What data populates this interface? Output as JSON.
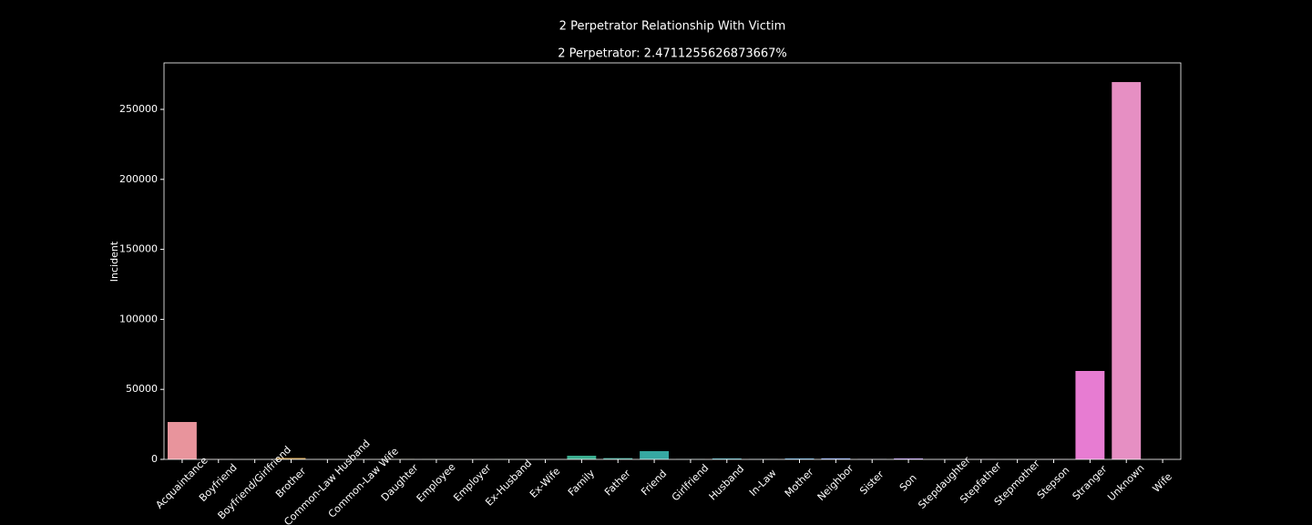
{
  "chart_data": {
    "type": "bar",
    "title": "2 Perpetrator Relationship With Victim",
    "subtitle": "2 Perpetrator: 2.4711255626873667%",
    "y_label": "Incident",
    "categories": [
      "Acquaintance",
      "Boyfriend",
      "Boyfriend/Girlfriend",
      "Brother",
      "Common-Law Husband",
      "Common-Law Wife",
      "Daughter",
      "Employee",
      "Employer",
      "Ex-Husband",
      "Ex-Wife",
      "Family",
      "Father",
      "Friend",
      "Girlfriend",
      "Husband",
      "In-Law",
      "Mother",
      "Neighbor",
      "Sister",
      "Son",
      "Stepdaughter",
      "Stepfather",
      "Stepmother",
      "Stepson",
      "Stranger",
      "Unknown",
      "Wife"
    ],
    "values": [
      26700,
      100,
      50,
      1000,
      50,
      50,
      200,
      100,
      50,
      100,
      50,
      2600,
      900,
      5900,
      150,
      700,
      200,
      700,
      800,
      200,
      700,
      50,
      100,
      50,
      100,
      63150,
      269500,
      100
    ],
    "colors": [
      "#e8949c",
      "#e8967c",
      "#de9c5c",
      "#d0a04d",
      "#c1a64a",
      "#b2ab48",
      "#a1af47",
      "#8eb346",
      "#74b846",
      "#4cbb5a",
      "#3fb77d",
      "#3aad8f",
      "#38aa99",
      "#36a8a2",
      "#37a6ab",
      "#39a4b5",
      "#3ca1c2",
      "#4d9cd5",
      "#7596e6",
      "#978fec",
      "#ad86ee",
      "#c27cee",
      "#d475ea",
      "#e16fe0",
      "#e678d6",
      "#e77cd2",
      "#e68fc3",
      "#e68bb0"
    ],
    "ylim": [
      0,
      283200
    ],
    "yticks": [
      0,
      50000,
      100000,
      150000,
      200000,
      250000
    ]
  }
}
